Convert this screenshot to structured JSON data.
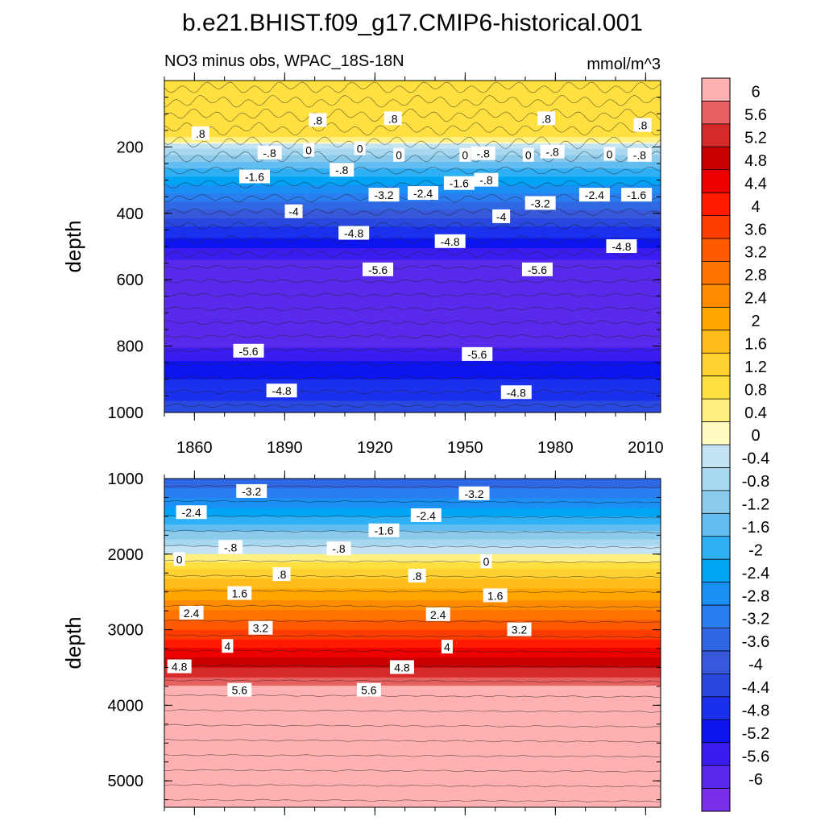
{
  "figure": {
    "title": "b.e21.BHIST.f09_g17.CMIP6-historical.001",
    "subtitle_left": "NO3 minus obs, WPAC_18S-18N",
    "subtitle_right": "mmol/m^3"
  },
  "chart_data": [
    {
      "type": "heatmap",
      "panel": "upper",
      "title": "NO3 minus obs, WPAC_18S-18N",
      "ylabel": "depth",
      "xlabel": "",
      "x_ticks": [
        1860,
        1890,
        1920,
        1950,
        1980,
        2010
      ],
      "y_ticks": [
        200,
        400,
        600,
        800,
        1000
      ],
      "xlim": [
        1850,
        2015
      ],
      "ylim": [
        1000,
        0
      ],
      "band_values": [
        {
          "depth": 0,
          "value": 0.4
        },
        {
          "depth": 60,
          "value": 0.8
        },
        {
          "depth": 130,
          "value": 0.8
        },
        {
          "depth": 170,
          "value": 0.4
        },
        {
          "depth": 205,
          "value": -0.4
        },
        {
          "depth": 245,
          "value": -1.2
        },
        {
          "depth": 290,
          "value": -2.0
        },
        {
          "depth": 340,
          "value": -2.8
        },
        {
          "depth": 390,
          "value": -3.6
        },
        {
          "depth": 440,
          "value": -4.4
        },
        {
          "depth": 490,
          "value": -5.0
        },
        {
          "depth": 540,
          "value": -5.6
        },
        {
          "depth": 600,
          "value": -5.9
        },
        {
          "depth": 700,
          "value": -6.0
        },
        {
          "depth": 780,
          "value": -5.9
        },
        {
          "depth": 820,
          "value": -5.4
        },
        {
          "depth": 870,
          "value": -5.0
        },
        {
          "depth": 930,
          "value": -4.6
        },
        {
          "depth": 1000,
          "value": -4.2
        }
      ],
      "contour_labels": [
        {
          "text": ".8",
          "x": 1862,
          "y": 160
        },
        {
          "text": ".8",
          "x": 1901,
          "y": 120
        },
        {
          "text": ".8",
          "x": 1926,
          "y": 115
        },
        {
          "text": ".8",
          "x": 1977,
          "y": 115
        },
        {
          "text": ".8",
          "x": 2009,
          "y": 135
        },
        {
          "text": "-.8",
          "x": 1885,
          "y": 218
        },
        {
          "text": "0",
          "x": 1898,
          "y": 210
        },
        {
          "text": "0",
          "x": 1915,
          "y": 205
        },
        {
          "text": "0",
          "x": 1928,
          "y": 225
        },
        {
          "text": "0",
          "x": 1950,
          "y": 225
        },
        {
          "text": "-.8",
          "x": 1956,
          "y": 220
        },
        {
          "text": "0",
          "x": 1971,
          "y": 225
        },
        {
          "text": "-.8",
          "x": 1979,
          "y": 215
        },
        {
          "text": "0",
          "x": 1998,
          "y": 222
        },
        {
          "text": "-.8",
          "x": 2008,
          "y": 225
        },
        {
          "text": "-1.6",
          "x": 1880,
          "y": 290
        },
        {
          "text": "-.8",
          "x": 1909,
          "y": 270
        },
        {
          "text": "-1.6",
          "x": 1948,
          "y": 310
        },
        {
          "text": "-.8",
          "x": 1957,
          "y": 300
        },
        {
          "text": "-1.6",
          "x": 2007,
          "y": 345
        },
        {
          "text": "-3.2",
          "x": 1923,
          "y": 345
        },
        {
          "text": "-2.4",
          "x": 1936,
          "y": 340
        },
        {
          "text": "-3.2",
          "x": 1975,
          "y": 370
        },
        {
          "text": "-2.4",
          "x": 1993,
          "y": 345
        },
        {
          "text": "-4",
          "x": 1893,
          "y": 395
        },
        {
          "text": "-4",
          "x": 1962,
          "y": 410
        },
        {
          "text": "-4.8",
          "x": 1913,
          "y": 460
        },
        {
          "text": "-4.8",
          "x": 1945,
          "y": 485
        },
        {
          "text": "-4.8",
          "x": 2002,
          "y": 500
        },
        {
          "text": "-5.6",
          "x": 1921,
          "y": 570
        },
        {
          "text": "-5.6",
          "x": 1974,
          "y": 570
        },
        {
          "text": "-5.6",
          "x": 1878,
          "y": 815
        },
        {
          "text": "-5.6",
          "x": 1954,
          "y": 825
        },
        {
          "text": "-4.8",
          "x": 1889,
          "y": 935
        },
        {
          "text": "-4.8",
          "x": 1967,
          "y": 940
        }
      ]
    },
    {
      "type": "heatmap",
      "panel": "lower",
      "ylabel": "depth",
      "xlabel": "",
      "y_ticks": [
        1000,
        2000,
        3000,
        4000,
        5000
      ],
      "xlim": [
        1850,
        2015
      ],
      "ylim": [
        5350,
        1000
      ],
      "band_values": [
        {
          "depth": 1000,
          "value": -3.6
        },
        {
          "depth": 1200,
          "value": -3.0
        },
        {
          "depth": 1400,
          "value": -2.4
        },
        {
          "depth": 1600,
          "value": -1.6
        },
        {
          "depth": 1800,
          "value": -0.8
        },
        {
          "depth": 2000,
          "value": 0.0
        },
        {
          "depth": 2200,
          "value": 0.8
        },
        {
          "depth": 2450,
          "value": 1.6
        },
        {
          "depth": 2750,
          "value": 2.4
        },
        {
          "depth": 3000,
          "value": 3.2
        },
        {
          "depth": 3250,
          "value": 4.0
        },
        {
          "depth": 3500,
          "value": 4.8
        },
        {
          "depth": 3700,
          "value": 5.4
        },
        {
          "depth": 3800,
          "value": 5.8
        },
        {
          "depth": 3900,
          "value": 6.2
        },
        {
          "depth": 5350,
          "value": 6.2
        }
      ],
      "contour_labels": [
        {
          "text": "-3.2",
          "x": 1879,
          "y": 1170
        },
        {
          "text": "-3.2",
          "x": 1953,
          "y": 1200
        },
        {
          "text": "-2.4",
          "x": 1859,
          "y": 1450
        },
        {
          "text": "-2.4",
          "x": 1937,
          "y": 1490
        },
        {
          "text": "-1.6",
          "x": 1923,
          "y": 1690
        },
        {
          "text": "-.8",
          "x": 1872,
          "y": 1910
        },
        {
          "text": "-.8",
          "x": 1908,
          "y": 1930
        },
        {
          "text": "0",
          "x": 1855,
          "y": 2070
        },
        {
          "text": "0",
          "x": 1957,
          "y": 2100
        },
        {
          "text": ".8",
          "x": 1889,
          "y": 2270
        },
        {
          "text": ".8",
          "x": 1934,
          "y": 2290
        },
        {
          "text": "1.6",
          "x": 1875,
          "y": 2520
        },
        {
          "text": "1.6",
          "x": 1960,
          "y": 2550
        },
        {
          "text": "2.4",
          "x": 1859,
          "y": 2780
        },
        {
          "text": "2.4",
          "x": 1941,
          "y": 2800
        },
        {
          "text": "3.2",
          "x": 1882,
          "y": 2980
        },
        {
          "text": "3.2",
          "x": 1968,
          "y": 3000
        },
        {
          "text": "4",
          "x": 1871,
          "y": 3220
        },
        {
          "text": "4",
          "x": 1944,
          "y": 3230
        },
        {
          "text": "4.8",
          "x": 1855,
          "y": 3490
        },
        {
          "text": "4.8",
          "x": 1929,
          "y": 3500
        },
        {
          "text": "5.6",
          "x": 1875,
          "y": 3800
        },
        {
          "text": "5.6",
          "x": 1918,
          "y": 3800
        }
      ]
    }
  ],
  "colorbar": {
    "labels": [
      "6",
      "5.6",
      "5.2",
      "4.8",
      "4.4",
      "4",
      "3.6",
      "3.2",
      "2.8",
      "2.4",
      "2",
      "1.6",
      "1.2",
      "0.8",
      "0.4",
      "0",
      "-0.4",
      "-0.8",
      "-1.2",
      "-1.6",
      "-2",
      "-2.4",
      "-2.8",
      "-3.2",
      "-3.6",
      "-4",
      "-4.4",
      "-4.8",
      "-5.2",
      "-5.6",
      "-6"
    ],
    "colors": [
      "#ffb0b0",
      "#e86060",
      "#d42a2a",
      "#c80000",
      "#ec0000",
      "#ff1a00",
      "#ff3c00",
      "#ff5a00",
      "#ff7400",
      "#ff8c00",
      "#ffa600",
      "#ffbc1a",
      "#ffd030",
      "#ffe040",
      "#fff080",
      "#fffac0",
      "#c4e4f4",
      "#a8d8f0",
      "#8ccaec",
      "#62bdf0",
      "#30b0f4",
      "#00a4f4",
      "#1a90f4",
      "#2a7ef0",
      "#3068e4",
      "#3858dc",
      "#2848e0",
      "#1a30ec",
      "#0c14f0",
      "#3a1cf0",
      "#5a2aec",
      "#7a2ee8"
    ]
  }
}
